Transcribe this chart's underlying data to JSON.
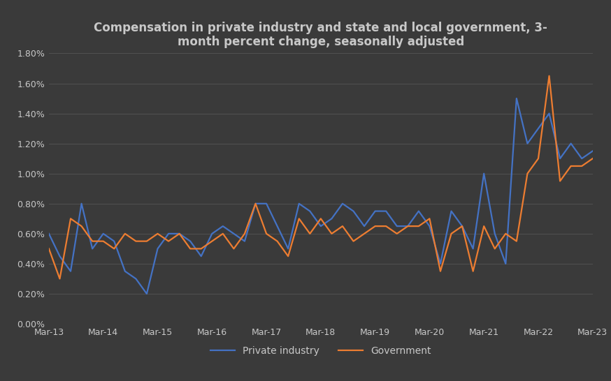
{
  "title": "Compensation in private industry and state and local government, 3-\nmonth percent change, seasonally adjusted",
  "background_color": "#3a3a3a",
  "text_color": "#c8c8c8",
  "grid_color": "#555555",
  "private_industry_color": "#4472c4",
  "government_color": "#ed7d31",
  "x_labels": [
    "Mar-13",
    "Mar-14",
    "Mar-15",
    "Mar-16",
    "Mar-17",
    "Mar-18",
    "Mar-19",
    "Mar-20",
    "Mar-21",
    "Mar-22",
    "Mar-23"
  ],
  "ylim": [
    0.0,
    0.018
  ],
  "yticks": [
    0.0,
    0.002,
    0.004,
    0.006,
    0.008,
    0.01,
    0.012,
    0.014,
    0.016,
    0.018
  ],
  "ytick_labels": [
    "0.00%",
    "0.20%",
    "0.40%",
    "0.60%",
    "0.80%",
    "1.00%",
    "1.20%",
    "1.40%",
    "1.60%",
    "1.80%"
  ],
  "private_industry": [
    0.006,
    0.0045,
    0.0035,
    0.008,
    0.005,
    0.006,
    0.0055,
    0.0035,
    0.003,
    0.002,
    0.005,
    0.006,
    0.006,
    0.0055,
    0.0045,
    0.006,
    0.0065,
    0.006,
    0.0055,
    0.008,
    0.008,
    0.0065,
    0.005,
    0.008,
    0.0075,
    0.0065,
    0.007,
    0.008,
    0.0075,
    0.0065,
    0.0075,
    0.0075,
    0.0065,
    0.0065,
    0.0075,
    0.0065,
    0.004,
    0.0075,
    0.0065,
    0.005,
    0.01,
    0.006,
    0.004,
    0.015,
    0.012,
    0.013,
    0.014,
    0.011,
    0.012,
    0.011,
    0.0115
  ],
  "government": [
    0.005,
    0.003,
    0.007,
    0.0065,
    0.0055,
    0.0055,
    0.005,
    0.006,
    0.0055,
    0.0055,
    0.006,
    0.0055,
    0.006,
    0.005,
    0.005,
    0.0055,
    0.006,
    0.005,
    0.006,
    0.008,
    0.006,
    0.0055,
    0.0045,
    0.007,
    0.006,
    0.007,
    0.006,
    0.0065,
    0.0055,
    0.006,
    0.0065,
    0.0065,
    0.006,
    0.0065,
    0.0065,
    0.007,
    0.0035,
    0.006,
    0.0065,
    0.0035,
    0.0065,
    0.005,
    0.006,
    0.0055,
    0.01,
    0.011,
    0.0165,
    0.0095,
    0.0105,
    0.0105,
    0.011
  ],
  "n_points": 51
}
